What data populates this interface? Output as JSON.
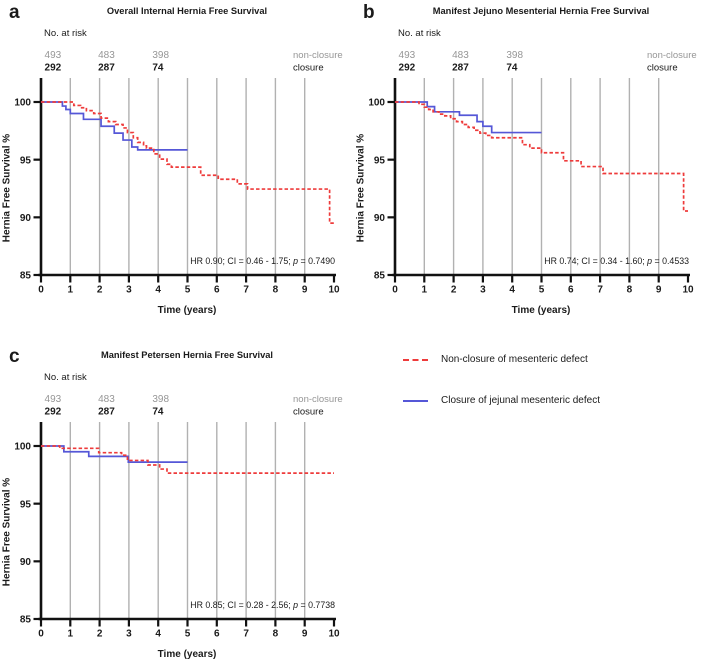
{
  "figure": {
    "colors": {
      "red": "#ee3b3b",
      "blue": "#5557d7",
      "grid": "#b1b1b1",
      "axis": "#111111",
      "gray_text": "#969696",
      "black_text": "#1a1a1a"
    },
    "legend": {
      "items": [
        {
          "label": "Non-closure of mesenteric defect",
          "color": "#ee3b3b",
          "style": "dashed"
        },
        {
          "label": "Closure of jejunal mesenteric defect",
          "color": "#5557d7",
          "style": "solid"
        }
      ]
    }
  },
  "chart_data": [
    {
      "type": "line",
      "panel_letter": "a",
      "title": "Overall Internal Hernia Free Survival",
      "xlabel": "Time (years)",
      "ylabel": "Hernia Free Survival %",
      "xlim": [
        0,
        10
      ],
      "ylim": [
        85,
        100
      ],
      "xticks": [
        0,
        1,
        2,
        3,
        4,
        5,
        6,
        7,
        8,
        9,
        10
      ],
      "yticks": [
        85,
        90,
        95,
        100
      ],
      "gridlines_x": [
        1,
        2,
        3,
        4,
        5,
        6,
        7,
        8,
        9
      ],
      "at_risk": {
        "header": "No. at risk",
        "columns_years": [
          0.12,
          1.95,
          3.8
        ],
        "rows": [
          {
            "label": "non-closure",
            "values": [
              "493",
              "483",
              "398"
            ],
            "gray": true,
            "bold": false
          },
          {
            "label": "closure",
            "values": [
              "292",
              "287",
              "74"
            ],
            "gray": false,
            "bold": true
          }
        ]
      },
      "annotation": {
        "prefix": "HR 0.90; CI = 0.46 - 1.75; ",
        "p_label": "p",
        "p_rest": " = 0.7490"
      },
      "series": [
        {
          "name": "Non-closure of mesenteric defect",
          "color": "#ee3b3b",
          "dash": true,
          "points": [
            [
              0,
              100
            ],
            [
              1.12,
              99.7
            ],
            [
              1.35,
              99.5
            ],
            [
              1.55,
              99.25
            ],
            [
              1.8,
              99.0
            ],
            [
              2.05,
              98.6
            ],
            [
              2.3,
              98.3
            ],
            [
              2.55,
              98.05
            ],
            [
              2.8,
              97.75
            ],
            [
              2.95,
              97.35
            ],
            [
              3.15,
              96.9
            ],
            [
              3.3,
              96.5
            ],
            [
              3.5,
              96.2
            ],
            [
              3.6,
              96.0
            ],
            [
              3.85,
              95.5
            ],
            [
              4.05,
              95.05
            ],
            [
              4.3,
              94.6
            ],
            [
              4.45,
              94.35
            ],
            [
              5.45,
              93.65
            ],
            [
              6.05,
              93.3
            ],
            [
              6.7,
              92.9
            ],
            [
              7.05,
              92.45
            ],
            [
              9.85,
              89.5
            ],
            [
              10,
              89.5
            ]
          ]
        },
        {
          "name": "Closure of jejunal mesenteric defect",
          "color": "#5557d7",
          "dash": false,
          "points": [
            [
              0,
              100
            ],
            [
              0.73,
              99.65
            ],
            [
              0.85,
              99.35
            ],
            [
              1.0,
              99.0
            ],
            [
              1.45,
              98.5
            ],
            [
              2.05,
              97.9
            ],
            [
              2.5,
              97.3
            ],
            [
              2.8,
              96.7
            ],
            [
              3.1,
              96.1
            ],
            [
              3.3,
              95.85
            ],
            [
              5.0,
              95.85
            ]
          ]
        }
      ]
    },
    {
      "type": "line",
      "panel_letter": "b",
      "title": "Manifest Jejuno Mesenterial Hernia Free Survival",
      "xlabel": "Time (years)",
      "ylabel": "Hernia Free Survival %",
      "xlim": [
        0,
        10
      ],
      "ylim": [
        85,
        100
      ],
      "xticks": [
        0,
        1,
        2,
        3,
        4,
        5,
        6,
        7,
        8,
        9,
        10
      ],
      "yticks": [
        85,
        90,
        95,
        100
      ],
      "gridlines_x": [
        1,
        2,
        3,
        4,
        5,
        6,
        7,
        8,
        9
      ],
      "at_risk": {
        "header": "No. at risk",
        "columns_years": [
          0.12,
          1.95,
          3.8
        ],
        "rows": [
          {
            "label": "non-closure",
            "values": [
              "493",
              "483",
              "398"
            ],
            "gray": true,
            "bold": false
          },
          {
            "label": "closure",
            "values": [
              "292",
              "287",
              "74"
            ],
            "gray": false,
            "bold": true
          }
        ]
      },
      "annotation": {
        "prefix": "HR 0.74; CI = 0.34 - 1.60; ",
        "p_label": "p",
        "p_rest": " = 0.4533"
      },
      "series": [
        {
          "name": "Non-closure of mesenteric defect",
          "color": "#ee3b3b",
          "dash": true,
          "points": [
            [
              0,
              100
            ],
            [
              0.82,
              99.8
            ],
            [
              1.0,
              99.55
            ],
            [
              1.15,
              99.35
            ],
            [
              1.3,
              99.15
            ],
            [
              1.5,
              98.95
            ],
            [
              1.7,
              98.8
            ],
            [
              1.9,
              98.55
            ],
            [
              2.1,
              98.3
            ],
            [
              2.3,
              98.05
            ],
            [
              2.5,
              97.8
            ],
            [
              2.7,
              97.55
            ],
            [
              2.9,
              97.3
            ],
            [
              3.1,
              97.1
            ],
            [
              3.3,
              96.9
            ],
            [
              4.35,
              96.3
            ],
            [
              4.6,
              96.0
            ],
            [
              5.0,
              95.6
            ],
            [
              5.75,
              94.9
            ],
            [
              6.35,
              94.4
            ],
            [
              7.1,
              93.8
            ],
            [
              9.85,
              90.55
            ],
            [
              10,
              90.55
            ]
          ]
        },
        {
          "name": "Closure of jejunal mesenteric defect",
          "color": "#5557d7",
          "dash": false,
          "points": [
            [
              0,
              100
            ],
            [
              1.1,
              99.6
            ],
            [
              1.35,
              99.15
            ],
            [
              2.2,
              98.85
            ],
            [
              2.8,
              98.3
            ],
            [
              3.0,
              97.9
            ],
            [
              3.3,
              97.35
            ],
            [
              5.0,
              97.35
            ]
          ]
        }
      ]
    },
    {
      "type": "line",
      "panel_letter": "c",
      "title": "Manifest Petersen Hernia Free Survival",
      "xlabel": "Time (years)",
      "ylabel": "Hernia Free Survival %",
      "xlim": [
        0,
        10
      ],
      "ylim": [
        85,
        100
      ],
      "xticks": [
        0,
        1,
        2,
        3,
        4,
        5,
        6,
        7,
        8,
        9,
        10
      ],
      "yticks": [
        85,
        90,
        95,
        100
      ],
      "gridlines_x": [
        1,
        2,
        3,
        4,
        5,
        6,
        7,
        8,
        9
      ],
      "at_risk": {
        "header": "No. at risk",
        "columns_years": [
          0.12,
          1.95,
          3.8
        ],
        "rows": [
          {
            "label": "non-closure",
            "values": [
              "493",
              "483",
              "398"
            ],
            "gray": true,
            "bold": false
          },
          {
            "label": "closure",
            "values": [
              "292",
              "287",
              "74"
            ],
            "gray": false,
            "bold": true
          }
        ]
      },
      "annotation": {
        "prefix": "HR 0.85; CI = 0.28 - 2.56; ",
        "p_label": "p",
        "p_rest": " = 0.7738"
      },
      "series": [
        {
          "name": "Non-closure of mesenteric defect",
          "color": "#ee3b3b",
          "dash": true,
          "points": [
            [
              0,
              100
            ],
            [
              0.64,
              99.8
            ],
            [
              1.97,
              99.42
            ],
            [
              2.75,
              99.2
            ],
            [
              2.95,
              98.75
            ],
            [
              3.65,
              98.35
            ],
            [
              4.05,
              98.0
            ],
            [
              4.3,
              97.65
            ],
            [
              10,
              97.65
            ]
          ]
        },
        {
          "name": "Closure of jejunal mesenteric defect",
          "color": "#5557d7",
          "dash": false,
          "points": [
            [
              0,
              100
            ],
            [
              0.78,
              99.5
            ],
            [
              1.63,
              99.1
            ],
            [
              2.98,
              98.6
            ],
            [
              5.0,
              98.6
            ]
          ]
        }
      ]
    }
  ]
}
